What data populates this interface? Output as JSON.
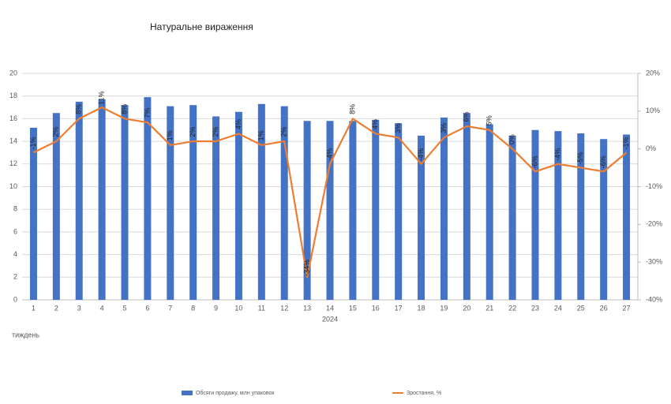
{
  "chart_data": {
    "type": "combo",
    "title": "Натуральне вираження",
    "x_group_label": "2024",
    "x_label": "тиждень",
    "categories": [
      "1",
      "2",
      "3",
      "4",
      "5",
      "6",
      "7",
      "8",
      "9",
      "10",
      "11",
      "12",
      "13",
      "14",
      "15",
      "16",
      "17",
      "18",
      "19",
      "20",
      "21",
      "22",
      "23",
      "24",
      "25",
      "26",
      "27"
    ],
    "series": [
      {
        "name": "Обсяги продажу, млн упаковок",
        "type": "bar",
        "color": "#4472c4",
        "values": [
          15.2,
          16.5,
          17.5,
          17.7,
          17.2,
          17.9,
          17.1,
          17.2,
          16.2,
          16.6,
          17.3,
          17.1,
          15.8,
          15.8,
          15.8,
          15.9,
          15.6,
          14.5,
          16.1,
          16.5,
          15.5,
          14.5,
          15.0,
          14.9,
          14.7,
          14.2,
          14.6
        ]
      },
      {
        "name": "Зростання, %",
        "type": "line",
        "axis": "y2",
        "color": "#ed7d31",
        "values": [
          -1,
          2,
          8,
          11,
          8,
          7,
          1,
          2,
          2,
          4,
          1,
          2,
          -34,
          -4,
          8,
          4,
          3,
          -4,
          3,
          6,
          5,
          0,
          -6,
          -4,
          -5,
          -6,
          -1
        ],
        "value_labels": [
          "-1%",
          "2%",
          "8%",
          "11%",
          "8%",
          "7%",
          "1%",
          "2%",
          "2%",
          "4%",
          "1%",
          "2%",
          "-34%",
          "-4%",
          "8%",
          "4%",
          "3%",
          "-4%",
          "3%",
          "6%",
          "5%",
          "0%",
          "-6%",
          "-4%",
          "-5%",
          "-6%",
          "-1%"
        ]
      }
    ],
    "ylim": [
      0,
      20
    ],
    "yticks": [
      0,
      2,
      4,
      6,
      8,
      10,
      12,
      14,
      16,
      18,
      20
    ],
    "y2lim": [
      -40,
      20
    ],
    "y2ticks": [
      {
        "value": -40,
        "label": "-40%"
      },
      {
        "value": -30,
        "label": "-30%"
      },
      {
        "value": -20,
        "label": "-20%"
      },
      {
        "value": -10,
        "label": "-10%"
      },
      {
        "value": 0,
        "label": "0%"
      },
      {
        "value": 10,
        "label": "10%"
      },
      {
        "value": 20,
        "label": "20%"
      }
    ],
    "grid": true
  }
}
